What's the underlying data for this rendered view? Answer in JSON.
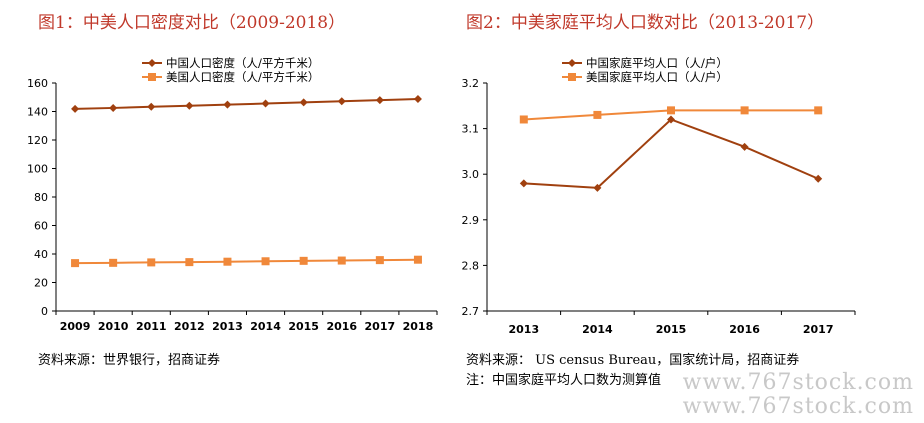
{
  "charts": {
    "left": {
      "title": "图1：中美人口密度对比（2009-2018）",
      "source": "资料来源：世界银行，招商证券"
    },
    "right": {
      "title": "图2：中美家庭平均人口数对比（2013-2017）",
      "source": "资料来源： US census Bureau，国家统计局，招商证券",
      "note": "注：中国家庭平均人口数为测算值"
    }
  },
  "watermark": {
    "line1": "www.767stock.com",
    "line2": "www.767stock.com"
  },
  "chart_data": [
    {
      "type": "line",
      "title": "图1：中美人口密度对比（2009-2018）",
      "x": [
        "2009",
        "2010",
        "2011",
        "2012",
        "2013",
        "2014",
        "2015",
        "2016",
        "2017",
        "2018"
      ],
      "ylim": [
        0,
        160
      ],
      "yticks": [
        0,
        20,
        40,
        60,
        80,
        100,
        120,
        140,
        160
      ],
      "grid": false,
      "legend_position": "top-left",
      "series": [
        {
          "name": "中国人口密度（人/平方千米）",
          "color": "#a0400f",
          "marker": "diamond",
          "values": [
            141.8,
            142.5,
            143.3,
            144.0,
            144.8,
            145.6,
            146.4,
            147.2,
            148.0,
            148.8
          ]
        },
        {
          "name": "美国人口密度（人/平方千米）",
          "color": "#f0883a",
          "marker": "square",
          "values": [
            33.6,
            33.8,
            34.1,
            34.3,
            34.6,
            34.9,
            35.2,
            35.4,
            35.7,
            36.0
          ]
        }
      ]
    },
    {
      "type": "line",
      "title": "图2：中美家庭平均人口数对比（2013-2017）",
      "x": [
        "2013",
        "2014",
        "2015",
        "2016",
        "2017"
      ],
      "ylim": [
        2.7,
        3.2
      ],
      "yticks": [
        2.7,
        2.8,
        2.9,
        3.0,
        3.1,
        3.2
      ],
      "grid": false,
      "legend_position": "top-center",
      "series": [
        {
          "name": "中国家庭平均人口（人/户）",
          "color": "#a0400f",
          "marker": "diamond",
          "values": [
            2.98,
            2.97,
            3.12,
            3.06,
            2.99
          ]
        },
        {
          "name": "美国家庭平均人口（人/户）",
          "color": "#f0883a",
          "marker": "square",
          "values": [
            3.12,
            3.13,
            3.14,
            3.14,
            3.14
          ]
        }
      ]
    }
  ]
}
